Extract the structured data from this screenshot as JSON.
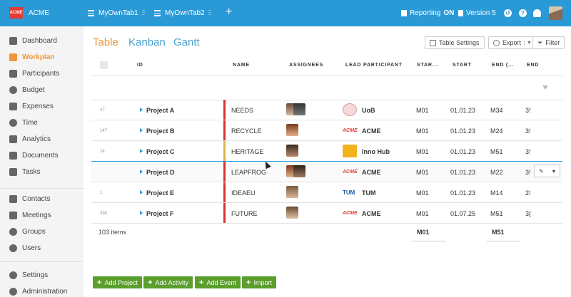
{
  "topbar": {
    "logo": "ACME",
    "app_name": "ACME",
    "tabs": [
      "MyOwnTab1",
      "MyOwnTab2"
    ],
    "reporting_label": "Reporting",
    "reporting_state": "ON",
    "version_label": "Version 5",
    "colors": {
      "bar": "#2a9ad6",
      "brand": "#e23b33"
    }
  },
  "sidebar": {
    "items": [
      {
        "label": "Dashboard",
        "icon": "dashboard-icon"
      },
      {
        "label": "Workplan",
        "icon": "workplan-icon",
        "active": true
      },
      {
        "label": "Participants",
        "icon": "participants-icon"
      },
      {
        "label": "Budget",
        "icon": "budget-icon"
      },
      {
        "label": "Expenses",
        "icon": "expenses-icon"
      },
      {
        "label": "Time",
        "icon": "clock-icon"
      },
      {
        "label": "Analytics",
        "icon": "analytics-icon"
      },
      {
        "label": "Documents",
        "icon": "documents-icon"
      },
      {
        "label": "Tasks",
        "icon": "tasks-icon"
      },
      {
        "label": "Contacts",
        "icon": "contacts-icon"
      },
      {
        "label": "Meetings",
        "icon": "meetings-icon"
      },
      {
        "label": "Groups",
        "icon": "groups-icon"
      },
      {
        "label": "Users",
        "icon": "users-icon"
      },
      {
        "label": "Settings",
        "icon": "settings-icon"
      },
      {
        "label": "Administration",
        "icon": "administration-icon"
      }
    ],
    "active_color": "#f0953a"
  },
  "views": {
    "tabs": [
      "Table",
      "Kanban",
      "Gantt"
    ],
    "table_settings": "Table Settings",
    "export": "Export",
    "filter": "Filter"
  },
  "table": {
    "headers": {
      "id": "ID",
      "name": "NAME",
      "assignees": "ASSIGNEES",
      "lead": "LEAD PARTICIPANT",
      "star": "STAR...",
      "start": "START",
      "end_paren": "END (...",
      "end": "END"
    },
    "rows": [
      {
        "id": "47",
        "project": "Project A",
        "name": "NEEDS",
        "lead": "UoB",
        "star": "M01",
        "start": "01.01.23",
        "endp": "M34",
        "end": "3!",
        "bar": "#d83232"
      },
      {
        "id": "147",
        "project": "Project B",
        "name": "RECYCLE",
        "lead": "ACME",
        "star": "M01",
        "start": "01.01.23",
        "endp": "M24",
        "end": "3!",
        "bar": "#d83232"
      },
      {
        "id": "24",
        "project": "Project C",
        "name": "HERITAGE",
        "lead": "Inno Hub",
        "star": "M01",
        "start": "01.01.23",
        "endp": "M51",
        "end": "3!",
        "bar": "#d9b54a"
      },
      {
        "id": "",
        "project": "Project D",
        "name": "LEAPFROG",
        "lead": "ACME",
        "star": "M01",
        "start": "01.01.23",
        "endp": "M22",
        "end": "3!",
        "bar": "#d83232"
      },
      {
        "id": "1",
        "project": "Project E",
        "name": "IDEAEU",
        "lead": "TUM",
        "star": "M01",
        "start": "01.01.23",
        "endp": "M14",
        "end": "2!",
        "bar": "#d83232"
      },
      {
        "id": "398",
        "project": "Project F",
        "name": "FUTURE",
        "lead": "ACME",
        "star": "M01",
        "start": "01.07.25",
        "endp": "M51",
        "end": "3(",
        "bar": "#d83232"
      }
    ],
    "item_count": "103 items",
    "footer_star": "M01",
    "footer_end": "M51"
  },
  "actions": [
    "Add Project",
    "Add Activity",
    "Add Event",
    "Import"
  ]
}
